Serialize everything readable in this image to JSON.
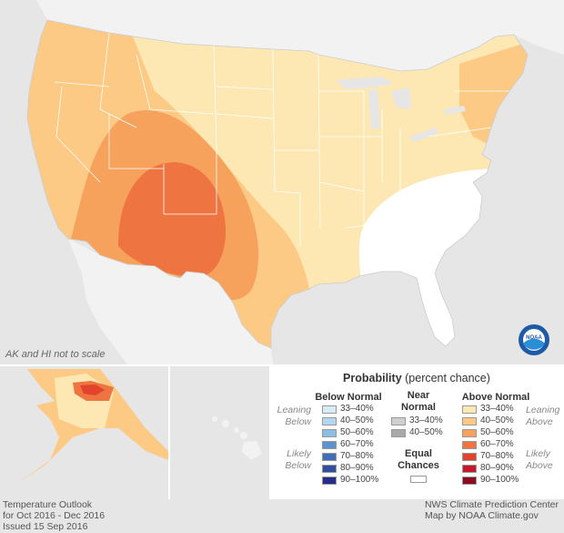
{
  "note": "AK and HI not to scale",
  "legend": {
    "title_bold": "Probability",
    "title_rest": "(percent chance)",
    "below_heading": "Below Normal",
    "near_heading_1": "Near",
    "near_heading_2": "Normal",
    "above_heading": "Above Normal",
    "leaning": "Leaning",
    "likely": "Likely",
    "below_word": "Below",
    "above_word": "Above",
    "equal_1": "Equal",
    "equal_2": "Chances",
    "below": [
      {
        "label": "33–40%",
        "color": "#d7ebf7"
      },
      {
        "label": "40–50%",
        "color": "#b4d6ee"
      },
      {
        "label": "50–60%",
        "color": "#8cbde3"
      },
      {
        "label": "60–70%",
        "color": "#5a93cf"
      },
      {
        "label": "70–80%",
        "color": "#3f6fb8"
      },
      {
        "label": "80–90%",
        "color": "#2f4fa0"
      },
      {
        "label": "90–100%",
        "color": "#222e8a"
      }
    ],
    "near": [
      {
        "label": "33–40%",
        "color": "#cfcfcf"
      },
      {
        "label": "40–50%",
        "color": "#a9a9a9"
      }
    ],
    "above": [
      {
        "label": "33–40%",
        "color": "#fde8b4"
      },
      {
        "label": "40–50%",
        "color": "#fcca84"
      },
      {
        "label": "50–60%",
        "color": "#f6a15c"
      },
      {
        "label": "60–70%",
        "color": "#ee7541"
      },
      {
        "label": "70–80%",
        "color": "#e2432a"
      },
      {
        "label": "80–90%",
        "color": "#c3192a"
      },
      {
        "label": "90–100%",
        "color": "#8c0a22"
      }
    ]
  },
  "footer": {
    "left": [
      "Temperature Outlook",
      "for Oct 2016 - Dec 2016",
      "Issued 15 Sep 2016"
    ],
    "right": [
      "NWS Climate Prediction Center",
      "Map by NOAA Climate.gov"
    ]
  }
}
